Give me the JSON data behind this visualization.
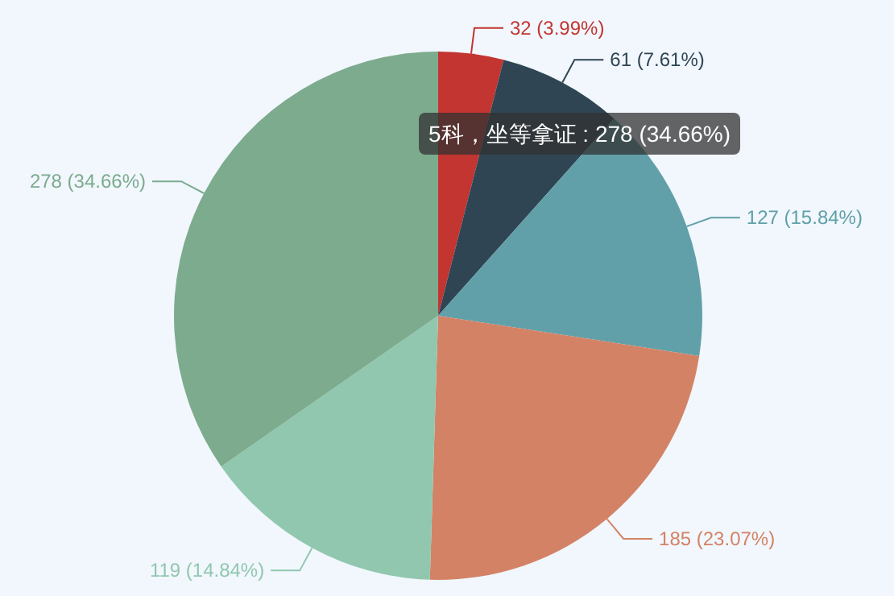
{
  "chart_data": {
    "type": "pie",
    "categories": [
      null,
      null,
      null,
      null,
      null,
      null
    ],
    "values": [
      32,
      61,
      127,
      185,
      119,
      278
    ],
    "colors": [
      "#c23531",
      "#2f4554",
      "#61a0a8",
      "#d48265",
      "#91c7ae",
      "#7dab8e"
    ],
    "value_labels": [
      "32 (3.99%)",
      "61 (7.61%)",
      "127 (15.84%)",
      "185 (23.07%)",
      "119 (14.84%)",
      "278 (34.66%)"
    ],
    "annotations": [
      "5科，坐等拿证 : 278 (34.66%)"
    ]
  }
}
